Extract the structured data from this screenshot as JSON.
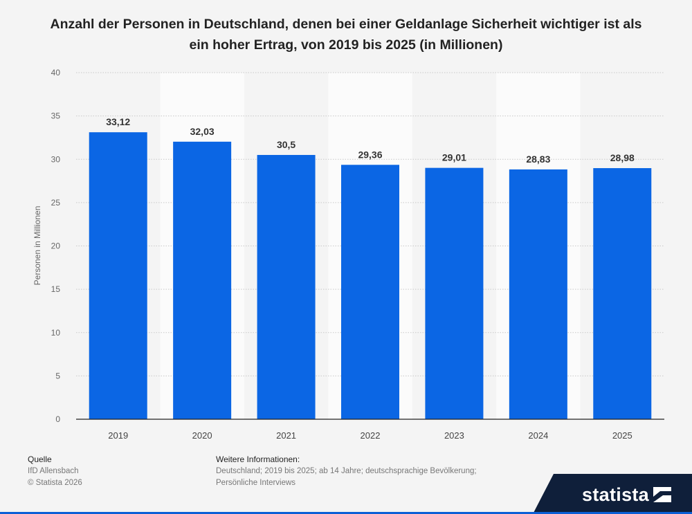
{
  "title": "Anzahl der Personen in Deutschland, denen bei einer Geldanlage Sicherheit wichtiger ist als ein hoher Ertrag, von 2019 bis 2025 (in Millionen)",
  "chart_data": {
    "type": "bar",
    "categories": [
      "2019",
      "2020",
      "2021",
      "2022",
      "2023",
      "2024",
      "2025"
    ],
    "values": [
      33.12,
      32.03,
      30.5,
      29.36,
      29.01,
      28.83,
      28.98
    ],
    "value_labels": [
      "33,12",
      "32,03",
      "30,5",
      "29,36",
      "29,01",
      "28,83",
      "28,98"
    ],
    "ylabel": "Personen in Millionen",
    "ylim": [
      0,
      40
    ],
    "yticks": [
      0,
      5,
      10,
      15,
      20,
      25,
      30,
      35,
      40
    ],
    "grid": true,
    "bar_color": "#0b66e4"
  },
  "footer": {
    "source_head": "Quelle",
    "source_lines": [
      "IfD Allensbach",
      "© Statista 2026"
    ],
    "info_head": "Weitere Informationen:",
    "info_lines": [
      "Deutschland; 2019 bis 2025; ab 14 Jahre; deutschsprachige Bevölkerung;",
      "Persönliche Interviews"
    ]
  },
  "logo": {
    "text": "statista"
  },
  "colors": {
    "logo_band": "#0f1f3a",
    "accent": "#0b5fd6"
  }
}
